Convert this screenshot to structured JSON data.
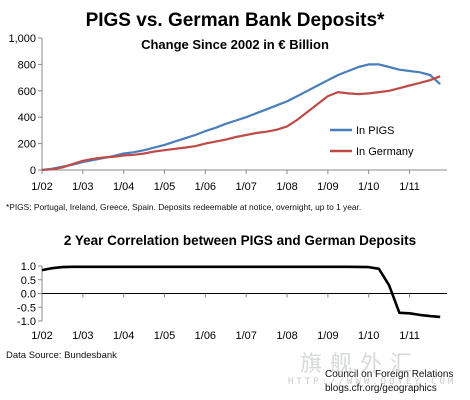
{
  "footnote": "*PIGS: Portugal, Ireland, Greece, Spain.  Deposits redeemable at notice, overnight, up to 1 year.",
  "data_source": "Data Source: Bundesbank",
  "credit": {
    "org": "Council on Foreign Relations",
    "url": "blogs.cfr.org/geographics"
  },
  "watermark": {
    "chars": "旗舰外汇",
    "url": "HTTP://WWW.QQYEY.COM"
  },
  "colors": {
    "pigs": "#4a7ebb",
    "germany": "#be4b48",
    "correlation": "#000000"
  },
  "chart_data": [
    {
      "type": "line",
      "title": "PIGS vs. German Bank Deposits*",
      "subtitle": "Change Since 2002 in € Billion",
      "xlabel": "",
      "ylabel": "",
      "ylim": [
        0,
        1000
      ],
      "yticks": [
        "0",
        "200",
        "400",
        "600",
        "800",
        "1,000"
      ],
      "xticks": [
        "1/02",
        "1/03",
        "1/04",
        "1/05",
        "1/06",
        "1/07",
        "1/08",
        "1/09",
        "1/10",
        "1/11"
      ],
      "grid": false,
      "legend": "right",
      "x": [
        "1/02",
        "4/02",
        "7/02",
        "10/02",
        "1/03",
        "4/03",
        "7/03",
        "10/03",
        "1/04",
        "4/04",
        "7/04",
        "10/04",
        "1/05",
        "4/05",
        "7/05",
        "10/05",
        "1/06",
        "4/06",
        "7/06",
        "10/06",
        "1/07",
        "4/07",
        "7/07",
        "10/07",
        "1/08",
        "4/08",
        "7/08",
        "10/08",
        "1/09",
        "4/09",
        "7/09",
        "10/09",
        "1/10",
        "4/10",
        "7/10",
        "10/10",
        "1/11",
        "4/11",
        "7/11",
        "10/11"
      ],
      "series": [
        {
          "name": "In PIGS",
          "values": [
            0,
            10,
            25,
            40,
            60,
            75,
            90,
            105,
            125,
            135,
            150,
            170,
            190,
            215,
            240,
            265,
            295,
            320,
            350,
            375,
            400,
            430,
            460,
            490,
            520,
            560,
            600,
            640,
            680,
            720,
            750,
            780,
            800,
            800,
            780,
            760,
            750,
            740,
            720,
            650
          ]
        },
        {
          "name": "In Germany",
          "values": [
            0,
            5,
            20,
            45,
            70,
            85,
            95,
            100,
            110,
            115,
            125,
            140,
            150,
            160,
            170,
            180,
            200,
            215,
            230,
            250,
            265,
            280,
            290,
            305,
            330,
            380,
            440,
            500,
            560,
            590,
            580,
            575,
            580,
            590,
            600,
            620,
            640,
            660,
            680,
            710
          ]
        }
      ]
    },
    {
      "type": "line",
      "title": "2 Year Correlation between PIGS and German Deposits",
      "xlabel": "",
      "ylabel": "",
      "ylim": [
        -1.0,
        1.0
      ],
      "yticks": [
        "1.0",
        "0.5",
        "0.0",
        "-0.5",
        "-1.0"
      ],
      "xticks": [
        "1/02",
        "1/03",
        "1/04",
        "1/05",
        "1/06",
        "1/07",
        "1/08",
        "1/09",
        "1/10",
        "1/11"
      ],
      "grid": false,
      "x": [
        "1/02",
        "4/02",
        "7/02",
        "10/02",
        "1/03",
        "7/03",
        "1/04",
        "7/04",
        "1/05",
        "7/05",
        "1/06",
        "7/06",
        "1/07",
        "7/07",
        "1/08",
        "7/08",
        "1/09",
        "7/09",
        "1/10",
        "4/10",
        "7/10",
        "10/10",
        "1/11",
        "4/11",
        "7/11",
        "10/11"
      ],
      "series": [
        {
          "name": "",
          "values": [
            0.85,
            0.92,
            0.96,
            0.97,
            0.97,
            0.97,
            0.97,
            0.97,
            0.97,
            0.97,
            0.97,
            0.97,
            0.97,
            0.97,
            0.97,
            0.97,
            0.97,
            0.97,
            0.96,
            0.9,
            0.3,
            -0.7,
            -0.72,
            -0.78,
            -0.82,
            -0.85
          ]
        }
      ]
    }
  ]
}
